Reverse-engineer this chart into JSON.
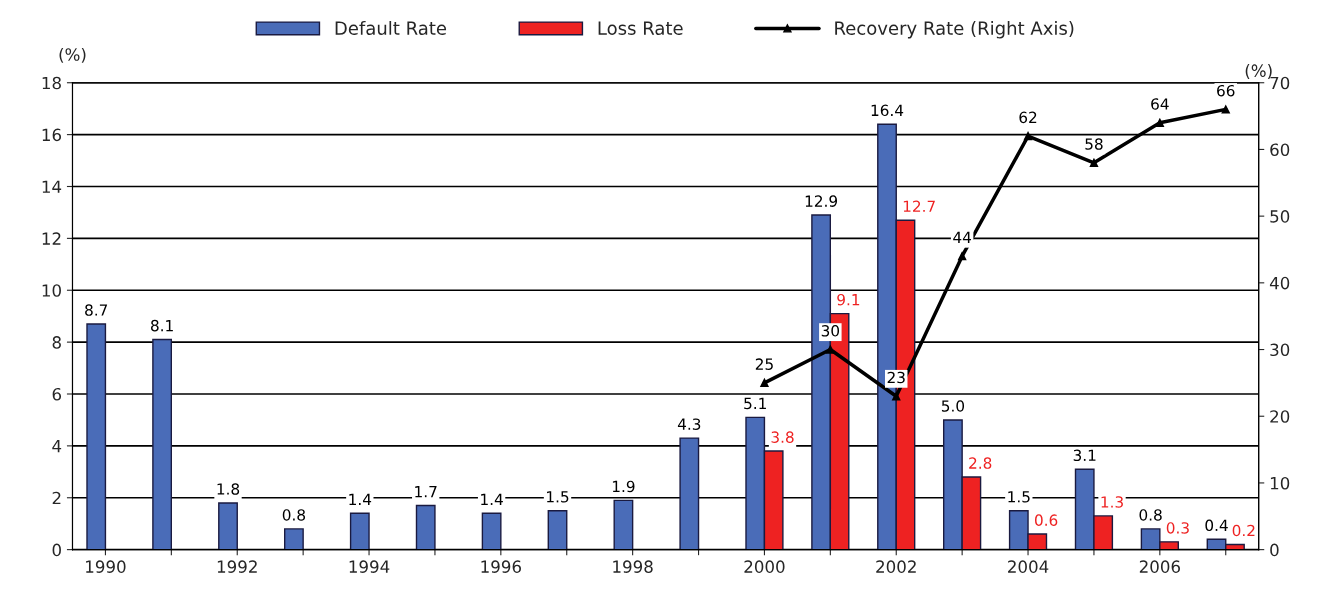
{
  "chart_data": {
    "type": "bar",
    "categories": [
      "1990",
      null,
      "1992",
      null,
      "1994",
      null,
      "1996",
      null,
      "1998",
      null,
      "2000",
      null,
      "2002",
      null,
      "2004",
      null,
      "2006",
      null
    ],
    "series": [
      {
        "name": "Default Rate",
        "color": "#4a6cb8",
        "values": [
          8.7,
          8.1,
          1.8,
          0.8,
          1.4,
          1.7,
          1.4,
          1.5,
          1.9,
          4.3,
          5.1,
          12.9,
          16.4,
          5.0,
          1.5,
          3.1,
          0.8,
          0.4
        ],
        "value_labels": [
          "8.7",
          "8.1",
          "1.8",
          "0.8",
          "1.4",
          "1.7",
          "1.4",
          "1.5",
          "1.9",
          "4.3",
          "5.1",
          "12.9",
          "16.4",
          "5.0",
          "1.5",
          "3.1",
          "0.8",
          "0.4"
        ]
      },
      {
        "name": "Loss Rate",
        "color": "#ee2222",
        "values": [
          null,
          null,
          null,
          null,
          null,
          null,
          null,
          null,
          null,
          null,
          3.8,
          9.1,
          12.7,
          2.8,
          0.6,
          1.3,
          0.3,
          0.2
        ],
        "value_labels": [
          null,
          null,
          null,
          null,
          null,
          null,
          null,
          null,
          null,
          null,
          "3.8",
          "9.1",
          "12.7",
          "2.8",
          "0.6",
          "1.3",
          "0.3",
          "0.2"
        ]
      },
      {
        "name": "Recovery Rate (Right Axis)",
        "type": "line",
        "axis": "y2",
        "color": "#000000",
        "marker": "triangle",
        "line_style": "solid",
        "values": [
          null,
          null,
          null,
          null,
          null,
          null,
          null,
          null,
          null,
          null,
          25,
          30,
          23,
          44,
          62,
          58,
          64,
          66
        ],
        "value_labels": [
          null,
          null,
          null,
          null,
          null,
          null,
          null,
          null,
          null,
          null,
          "25",
          "30",
          "23",
          "44",
          "62",
          "58",
          "64",
          "66"
        ]
      }
    ],
    "ylabel": "(%)",
    "y2label": "(%)",
    "ylim": [
      0,
      18
    ],
    "yticks": [
      0,
      2,
      4,
      6,
      8,
      10,
      12,
      14,
      16,
      18
    ],
    "y2lim": [
      0,
      70
    ],
    "y2ticks": [
      0,
      10,
      20,
      30,
      40,
      50,
      60,
      70
    ],
    "grid": "y",
    "legend": "top"
  }
}
